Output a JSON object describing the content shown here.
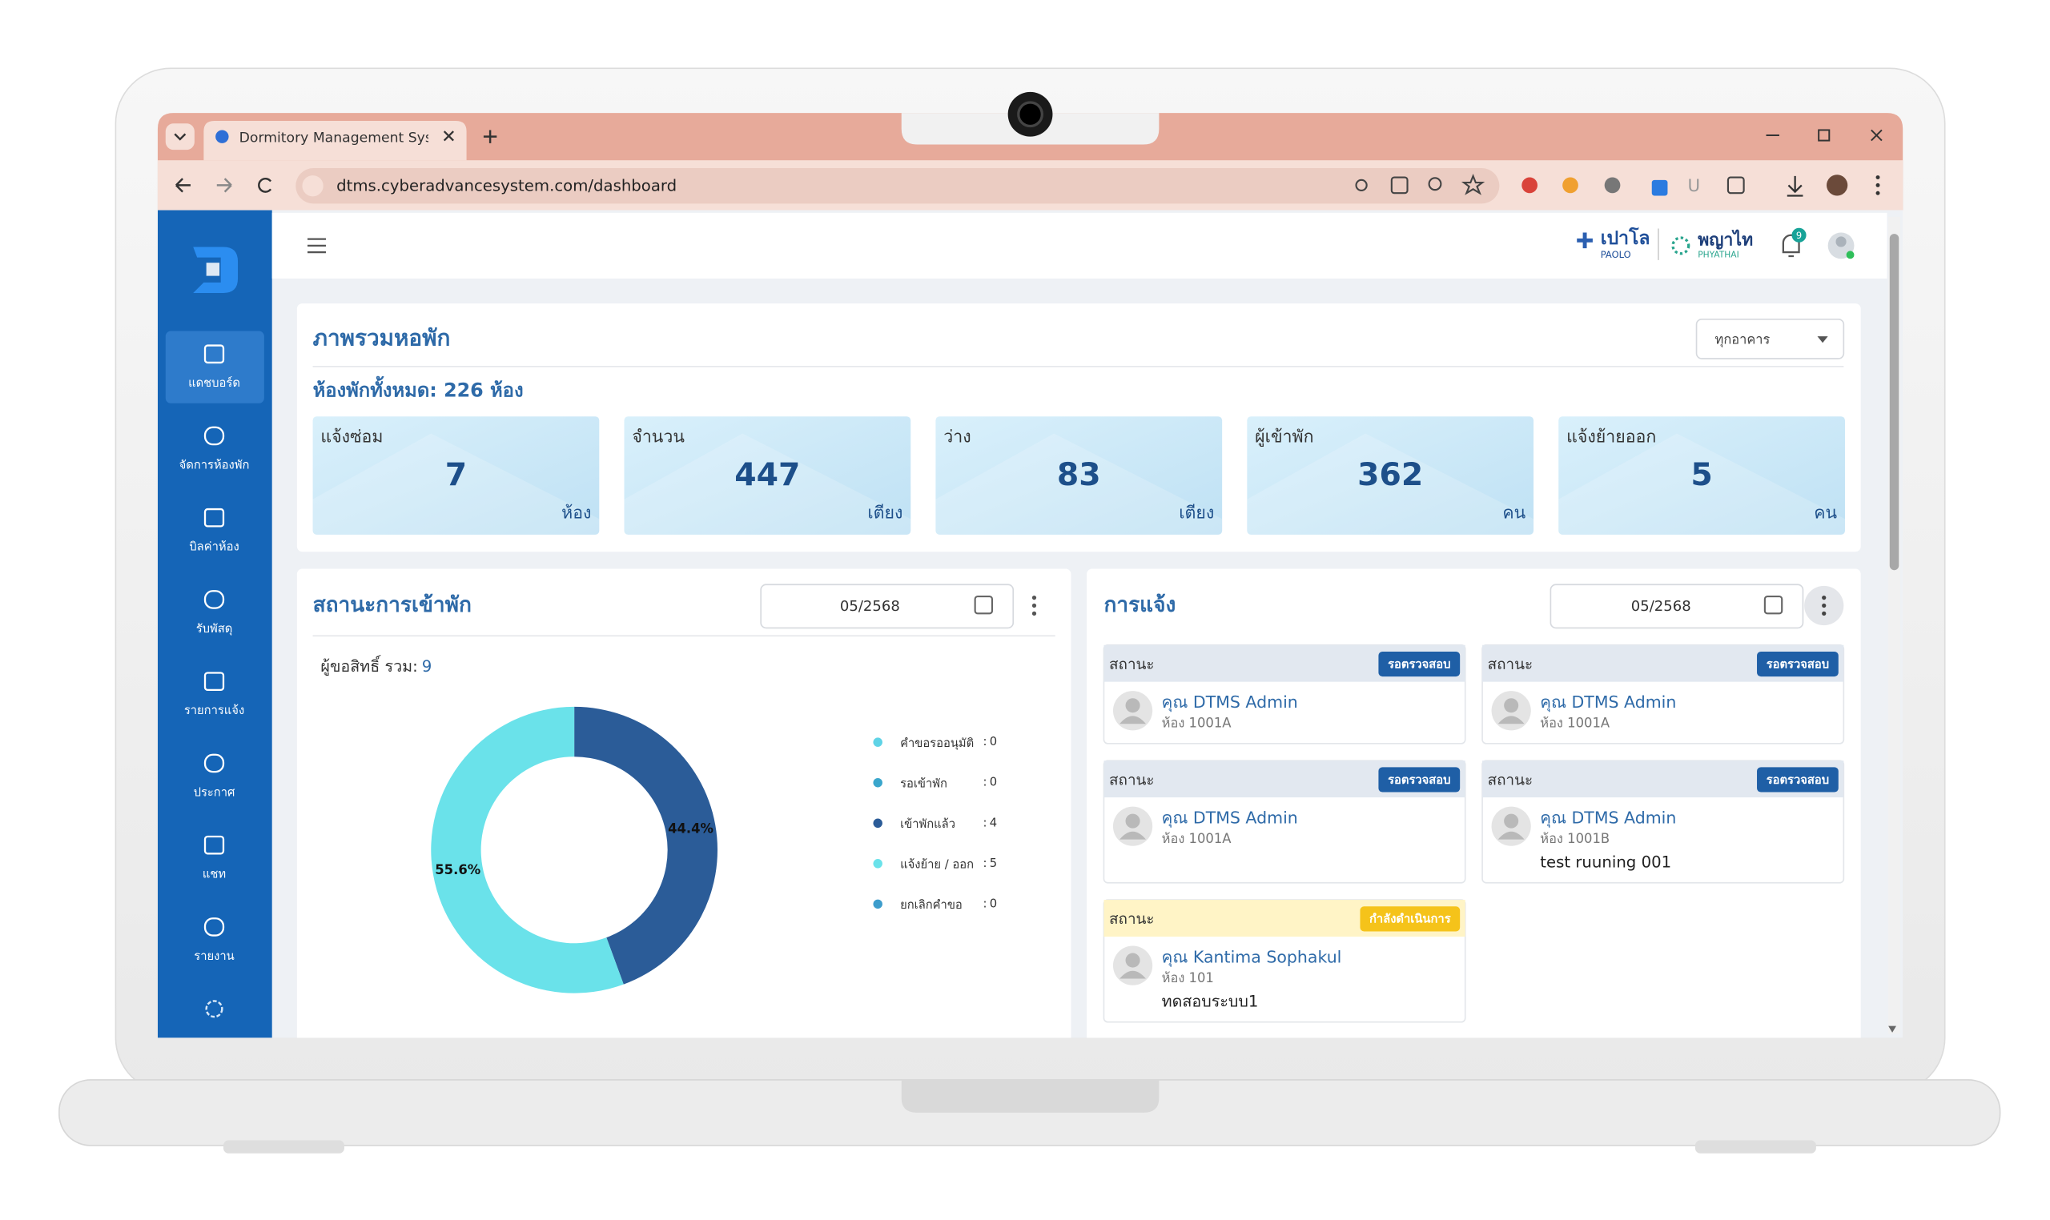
{
  "browser": {
    "tab_title": "Dormitory Management System",
    "url": "dtms.cyberadvancesystem.com/dashboard"
  },
  "sidebar": {
    "items": [
      "แดชบอร์ด",
      "จัดการห้องพัก",
      "บิลค่าห้อง",
      "รับพัสดุ",
      "รายการแจ้ง",
      "ประกาศ",
      "แชท",
      "รายงาน"
    ]
  },
  "header": {
    "brand_1": "เปาโล",
    "brand_1_sub": "PAOLO",
    "brand_2": "พญาไท",
    "brand_2_sub": "PHYATHAI",
    "notification_count": 9
  },
  "overview": {
    "title": "ภาพรวมหอพัก",
    "building_filter": "ทุกอาคาร",
    "total_rooms": "ห้องพักทั้งหมด: 226 ห้อง",
    "stats": [
      {
        "label": "แจ้งซ่อม",
        "value": 7,
        "unit": "ห้อง"
      },
      {
        "label": "จำนวน",
        "value": 447,
        "unit": "เตียง"
      },
      {
        "label": "ว่าง",
        "value": 83,
        "unit": "เตียง"
      },
      {
        "label": "ผู้เข้าพัก",
        "value": 362,
        "unit": "คน"
      },
      {
        "label": "แจ้งย้ายออก",
        "value": 5,
        "unit": "คน"
      }
    ]
  },
  "occupancy": {
    "title": "สถานะการเข้าพัก",
    "date": "05/2568",
    "total_label": "ผู้ขอสิทธิ์ รวม:",
    "total": 9,
    "count_separator": ":"
  },
  "chart_data": {
    "type": "pie",
    "categories": [
      "คำขอรออนุมัติ",
      "รอเข้าพัก",
      "เข้าพักแล้ว",
      "แจ้งย้าย / ออก",
      "ยกเลิกคำขอ"
    ],
    "values": [
      0,
      0,
      44.4,
      55.6,
      0
    ],
    "value_labels": [
      null,
      null,
      "44.4%",
      "55.6%",
      null
    ],
    "counts": [
      0,
      0,
      4,
      5,
      0
    ],
    "colors": [
      "#5fd3e6",
      "#3aa6cc",
      "#2b5c98",
      "#6ae2ea",
      "#3d9dcc"
    ],
    "donut": true
  },
  "notifications": {
    "title": "การแจ้ง",
    "date": "05/2568",
    "cards": [
      {
        "status_label": "สถานะ",
        "badge": "รอตรวจสอบ",
        "name": "คุณ DTMS Admin",
        "room": "ห้อง 1001A",
        "tone": "review"
      },
      {
        "status_label": "สถานะ",
        "badge": "รอตรวจสอบ",
        "name": "คุณ DTMS Admin",
        "room": "ห้อง 1001A",
        "tone": "review"
      },
      {
        "status_label": "สถานะ",
        "badge": "รอตรวจสอบ",
        "name": "คุณ DTMS Admin",
        "room": "ห้อง 1001A",
        "tone": "review"
      },
      {
        "status_label": "สถานะ",
        "badge": "รอตรวจสอบ",
        "name": "คุณ DTMS Admin",
        "room": "ห้อง 1001B",
        "note": "test ruuning 001",
        "tone": "review"
      },
      {
        "status_label": "สถานะ",
        "badge": "กำลังดำเนินการ",
        "name": "คุณ Kantima Sophakul",
        "room": "ห้อง 101",
        "note": "ทดสอบระบบ1",
        "tone": "progress"
      }
    ]
  }
}
